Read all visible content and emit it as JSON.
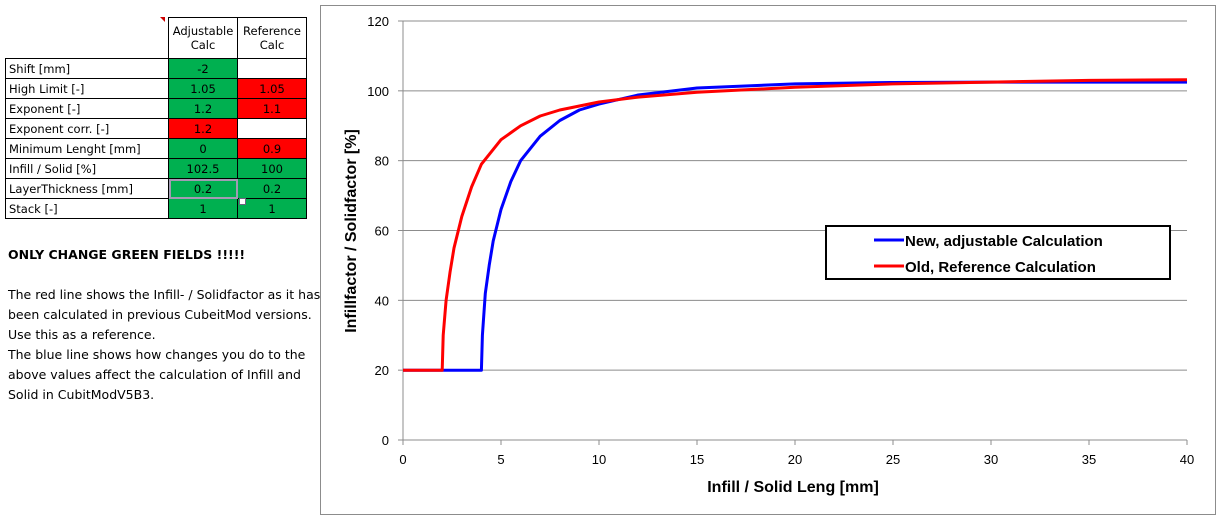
{
  "table": {
    "headers": [
      {
        "line1": "Adjustable",
        "line2": "Calc"
      },
      {
        "line1": "Reference",
        "line2": "Calc"
      }
    ],
    "rows": [
      {
        "label": "Shift [mm]",
        "adjustable": "-2",
        "reference": ""
      },
      {
        "label": "High Limit [-]",
        "adjustable": "1.05",
        "reference": "1.05"
      },
      {
        "label": "Exponent [-]",
        "adjustable": "1.2",
        "reference": "1.1"
      },
      {
        "label": "Exponent corr. [-]",
        "adjustable": "1.2",
        "reference": ""
      },
      {
        "label": "Minimum Lenght [mm]",
        "adjustable": "0",
        "reference": "0.9"
      },
      {
        "label": "Infill / Solid [%]",
        "adjustable": "102.5",
        "reference": "100"
      },
      {
        "label": "LayerThickness [mm]",
        "adjustable": "0.2",
        "reference": "0.2"
      },
      {
        "label": "Stack [-]",
        "adjustable": "1",
        "reference": "1"
      }
    ],
    "colors": {
      "green": "#00b050",
      "red": "#ff0000"
    }
  },
  "notes": {
    "title": "ONLY CHANGE GREEN FIELDS !!!!!",
    "line1": "The red line shows the Infill- / Solidfactor as it has",
    "line2": "been calculated in previous CubeitMod versions.",
    "line3": "Use this as a reference.",
    "line4": "The blue line shows how changes you do to the",
    "line5": "above values affect the calculation of Infill and",
    "line6": "Solid in CubitModV5B3."
  },
  "chart_data": {
    "type": "line",
    "xlabel": "Infill / Solid Leng [mm]",
    "ylabel": "Infillfactor / Solidfactor [%]",
    "xlim": [
      0,
      40
    ],
    "ylim": [
      0,
      120
    ],
    "xticks": [
      0,
      5,
      10,
      15,
      20,
      25,
      30,
      35,
      40
    ],
    "yticks": [
      0,
      20,
      40,
      60,
      80,
      100,
      120
    ],
    "grid": "horizontal",
    "legend_position": "right-middle",
    "series": [
      {
        "name": "New, adjustable Calculation",
        "color": "#0000ff",
        "x": [
          0,
          4.0,
          4.05,
          4.2,
          4.4,
          4.6,
          5.0,
          5.5,
          6.0,
          7.0,
          8.0,
          9.0,
          10.0,
          12.0,
          15.0,
          20.0,
          25.0,
          30.0,
          35.0,
          40.0
        ],
        "y": [
          20,
          20,
          30,
          42,
          50,
          57,
          66,
          74,
          80,
          87,
          91.5,
          94.5,
          96.2,
          98.8,
          100.8,
          102.0,
          102.4,
          102.5,
          102.5,
          102.5
        ]
      },
      {
        "name": "Old, Reference Calculation",
        "color": "#ff0000",
        "x": [
          0,
          2.0,
          2.05,
          2.2,
          2.4,
          2.6,
          3.0,
          3.5,
          4.0,
          5.0,
          6.0,
          7.0,
          8.0,
          10.0,
          12.0,
          15.0,
          20.0,
          25.0,
          30.0,
          35.0,
          40.0
        ],
        "y": [
          20,
          20,
          30,
          40,
          48,
          55,
          64,
          72.5,
          79,
          86,
          90,
          92.8,
          94.5,
          96.8,
          98.2,
          99.6,
          101.0,
          102.0,
          102.5,
          103.0,
          103.2
        ]
      }
    ]
  }
}
